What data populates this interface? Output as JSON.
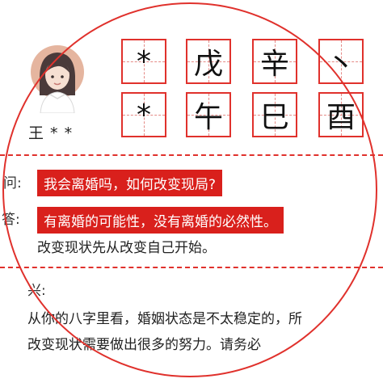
{
  "user": {
    "name": "王 * *"
  },
  "bazi": {
    "top": [
      "*",
      "戊",
      "辛",
      "丶"
    ],
    "bottom": [
      "*",
      "午",
      "巳",
      "酉"
    ]
  },
  "qa": {
    "question_label": "问:",
    "question": "我会离婚吗，如何改变现局?",
    "answer_label": "答:",
    "answer": "有离婚的可能性，没有离婚的必然性。",
    "answer_note": "改变现状先从改变自己开始。"
  },
  "analysis": {
    "label": "兴:",
    "lines": [
      "从你的八字里看，婚姻状态是不太稳定的，所",
      "改变现状需要做出很多的努力。请务必"
    ]
  },
  "colors": {
    "accent": "#d9201c",
    "ring": "#e0312c",
    "text": "#222222"
  }
}
